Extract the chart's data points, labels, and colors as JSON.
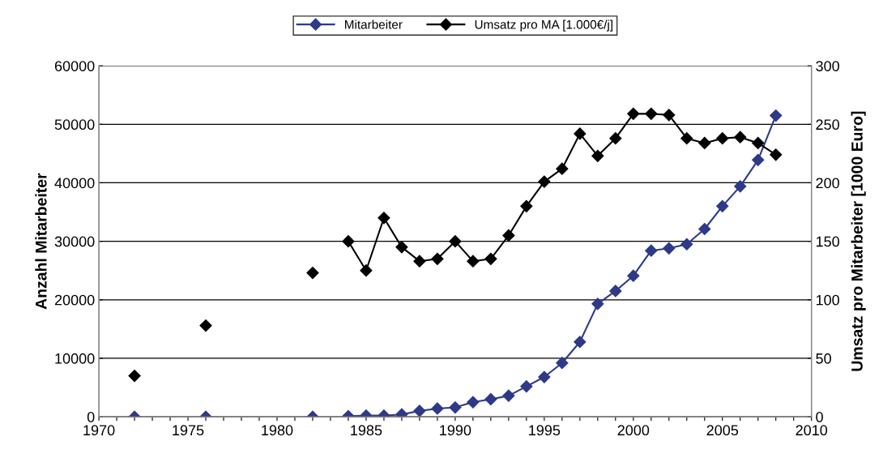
{
  "chart_data": {
    "type": "line",
    "ylabel": "Anzahl Mitarbeiter",
    "y2label": "Umsatz pro Mitarbeiter [1000 Euro]",
    "x": [
      1972,
      1974,
      1976,
      1979,
      1982,
      1983,
      1984,
      1985,
      1986,
      1987,
      1988,
      1989,
      1990,
      1991,
      1992,
      1993,
      1994,
      1995,
      1996,
      1997,
      1998,
      1999,
      2000,
      2001,
      2002,
      2003,
      2004,
      2005,
      2006,
      2007,
      2008
    ],
    "series": [
      {
        "name": "Mitarbeiter",
        "color": "#2e3a87",
        "values": [
          0,
          null,
          0,
          null,
          0,
          null,
          100,
          200,
          200,
          400,
          1000,
          1400,
          1600,
          2500,
          3000,
          3600,
          5200,
          6800,
          9200,
          12800,
          19300,
          21500,
          24100,
          28400,
          28800,
          29500,
          32100,
          36000,
          39400,
          43900,
          51500
        ]
      },
      {
        "name": "Umsatz pro MA [1.000€/j]",
        "color": "#000000",
        "axis": "y2",
        "values": [
          35,
          null,
          78,
          null,
          123,
          null,
          150,
          125,
          170,
          145,
          133,
          135,
          150,
          133,
          135,
          155,
          180,
          201,
          212,
          242,
          223,
          238,
          259,
          259,
          258,
          238,
          234,
          238,
          239,
          234,
          224
        ]
      }
    ],
    "xlim": [
      1970,
      2010
    ],
    "xticks": [
      1970,
      {
        "value": 1971,
        "label": null
      },
      {
        "value": 1972,
        "label": null
      },
      {
        "value": 1973,
        "label": null
      },
      {
        "value": 1974,
        "label": null
      },
      1975,
      {
        "value": 1976,
        "label": null
      },
      {
        "value": 1977,
        "label": null
      },
      {
        "value": 1978,
        "label": null
      },
      {
        "value": 1979,
        "label": null
      },
      1980,
      {
        "value": 1981,
        "label": null
      },
      {
        "value": 1982,
        "label": null
      },
      {
        "value": 1983,
        "label": null
      },
      {
        "value": 1984,
        "label": null
      },
      1985,
      {
        "value": 1986,
        "label": null
      },
      {
        "value": 1987,
        "label": null
      },
      {
        "value": 1988,
        "label": null
      },
      {
        "value": 1989,
        "label": null
      },
      1990,
      {
        "value": 1991,
        "label": null
      },
      {
        "value": 1992,
        "label": null
      },
      {
        "value": 1993,
        "label": null
      },
      {
        "value": 1994,
        "label": null
      },
      1995,
      {
        "value": 1996,
        "label": null
      },
      {
        "value": 1997,
        "label": null
      },
      {
        "value": 1998,
        "label": null
      },
      {
        "value": 1999,
        "label": null
      },
      2000,
      {
        "value": 2001,
        "label": null
      },
      {
        "value": 2002,
        "label": null
      },
      {
        "value": 2003,
        "label": null
      },
      {
        "value": 2004,
        "label": null
      },
      2005,
      {
        "value": 2006,
        "label": null
      },
      {
        "value": 2007,
        "label": null
      },
      {
        "value": 2008,
        "label": null
      },
      {
        "value": 2009,
        "label": null
      },
      2010
    ],
    "ylim": [
      0,
      60000
    ],
    "yticks": [
      0,
      10000,
      20000,
      30000,
      40000,
      50000,
      60000
    ],
    "y2lim": [
      0,
      300
    ],
    "y2ticks": [
      0,
      50,
      100,
      150,
      200,
      250,
      300
    ],
    "grid": "y",
    "legend": "top",
    "marker": "diamond",
    "line_style": "solid"
  }
}
